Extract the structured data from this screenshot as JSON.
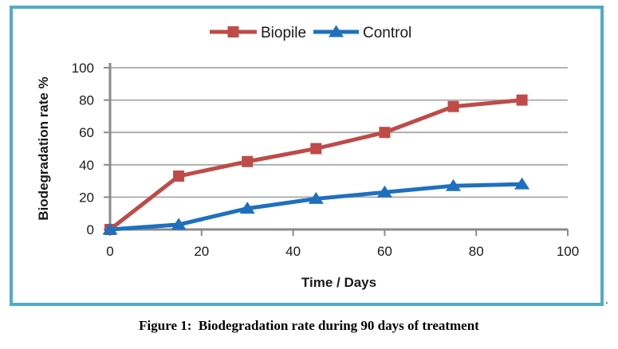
{
  "chart_data": {
    "type": "line",
    "title": "",
    "x": [
      0,
      15,
      30,
      45,
      60,
      75,
      90
    ],
    "series": [
      {
        "name": "Biopile",
        "marker": "square",
        "color": "#BE4B48",
        "values": [
          0,
          33,
          42,
          50,
          60,
          76,
          80
        ]
      },
      {
        "name": "Control",
        "marker": "triangle",
        "color": "#1E70BF",
        "values": [
          0,
          3,
          13,
          19,
          23,
          27,
          28
        ]
      }
    ],
    "xlabel": "Time / Days",
    "ylabel": "Biodegradation rate %",
    "xlim": [
      0,
      100
    ],
    "ylim": [
      0,
      100
    ],
    "xticks": [
      0,
      20,
      40,
      60,
      80,
      100
    ],
    "yticks": [
      0,
      20,
      40,
      60,
      80,
      100
    ],
    "grid": "horizontal-y",
    "legend_position": "top-center"
  },
  "figure": {
    "caption": "Figure 1:  Biodegradation rate during 90 days of treatment",
    "trailing_period": "."
  },
  "colors": {
    "border": "#4FACC8",
    "axis": "#8A8A8A",
    "grid": "#A8A8A8",
    "text": "#1A1A1A"
  }
}
